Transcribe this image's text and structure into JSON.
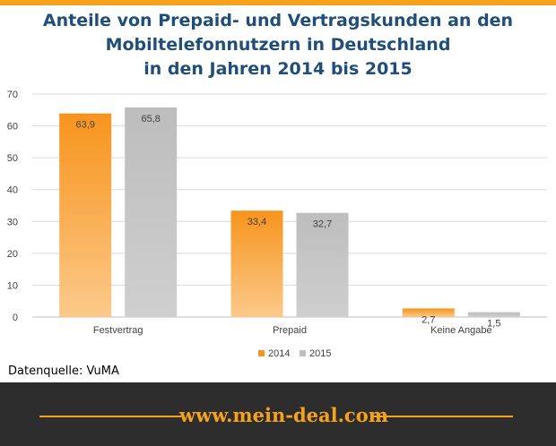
{
  "title_lines": [
    "Anteile von Prepaid- und Vertragskunden  an den",
    "Mobiltelefonnutzern  in Deutschland",
    "in den Jahren 2014 bis 2015"
  ],
  "source": "Datenquelle: VuMA",
  "footer": {
    "url": "www.mein-deal.com"
  },
  "colors": {
    "accent": "#f7a21b",
    "series_2014": "#f7941d",
    "series_2015": "#c0c0c0",
    "title": "#1f4e79"
  },
  "chart_data": {
    "type": "bar",
    "categories": [
      "Festvertrag",
      "Prepaid",
      "Keine Angabe"
    ],
    "series": [
      {
        "name": "2014",
        "values": [
          63.9,
          33.4,
          2.7
        ],
        "labels": [
          "63,9",
          "33,4",
          "2,7"
        ]
      },
      {
        "name": "2015",
        "values": [
          65.8,
          32.7,
          1.5
        ],
        "labels": [
          "65,8",
          "32,7",
          "1,5"
        ]
      }
    ],
    "yticks": [
      "0",
      "10",
      "20",
      "30",
      "40",
      "50",
      "60",
      "70"
    ],
    "ylim": [
      0,
      70
    ],
    "grid": true,
    "legend_position": "bottom"
  }
}
